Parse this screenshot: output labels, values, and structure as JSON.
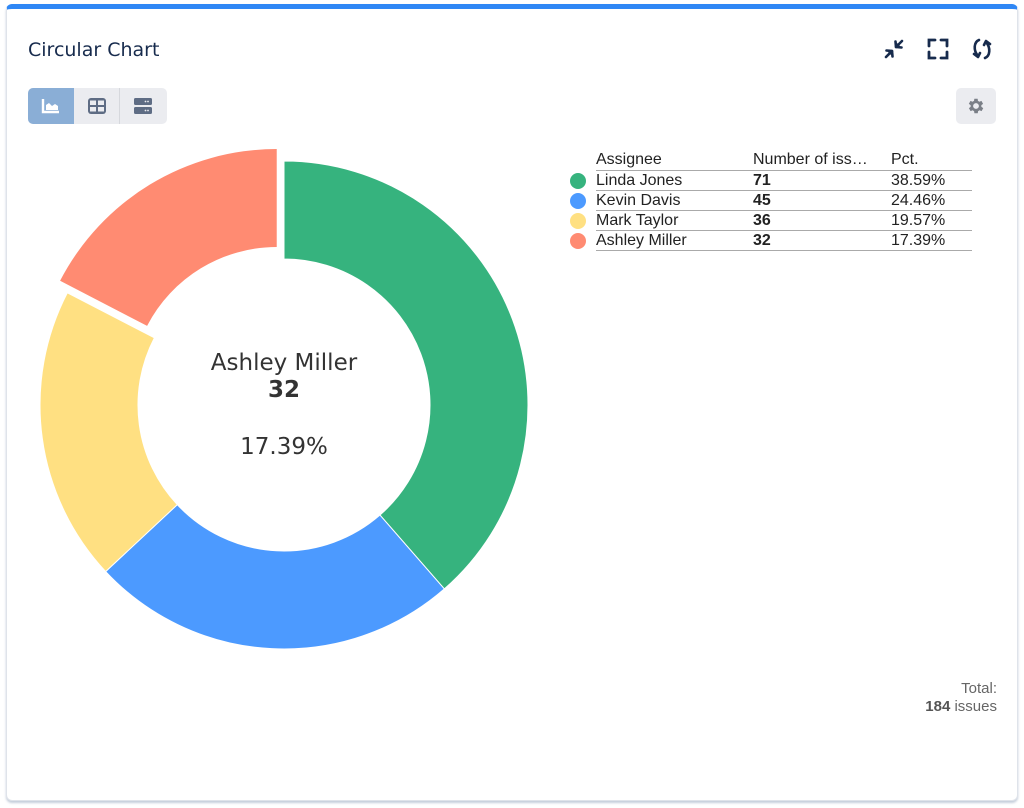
{
  "header": {
    "title": "Circular Chart",
    "icons": [
      "collapse-icon",
      "fullscreen-icon",
      "refresh-icon"
    ]
  },
  "view_toggle": {
    "options": [
      {
        "name": "chart-view",
        "icon": "area-chart-icon",
        "active": true
      },
      {
        "name": "table-view",
        "icon": "grid-icon",
        "active": false
      },
      {
        "name": "list-view",
        "icon": "server-rows-icon",
        "active": false
      }
    ]
  },
  "settings": {
    "icon": "gear-icon"
  },
  "center": {
    "name": "Ashley Miller",
    "value": "32",
    "pct": "17.39%"
  },
  "legend": {
    "headers": [
      "Assignee",
      "Number of iss…",
      "Pct."
    ],
    "rows": [
      {
        "name": "Linda Jones",
        "value": "71",
        "pct": "38.59%",
        "color": "#36b37e"
      },
      {
        "name": "Kevin Davis",
        "value": "45",
        "pct": "24.46%",
        "color": "#4c9aff"
      },
      {
        "name": "Mark Taylor",
        "value": "36",
        "pct": "19.57%",
        "color": "#ffe082"
      },
      {
        "name": "Ashley Miller",
        "value": "32",
        "pct": "17.39%",
        "color": "#ff8b72"
      }
    ]
  },
  "total": {
    "label": "Total:",
    "count": "184",
    "unit": "issues"
  },
  "chart_data": {
    "type": "pie",
    "subtype": "donut",
    "title": "Circular Chart",
    "categories": [
      "Linda Jones",
      "Kevin Davis",
      "Mark Taylor",
      "Ashley Miller"
    ],
    "values": [
      71,
      45,
      36,
      32
    ],
    "percentages": [
      38.59,
      24.46,
      19.57,
      17.39
    ],
    "colors": [
      "#36b37e",
      "#4c9aff",
      "#ffe082",
      "#ff8b72"
    ],
    "highlighted": "Ashley Miller",
    "total": 184,
    "legend_position": "right",
    "legend_columns": [
      "Assignee",
      "Number of issues",
      "Pct."
    ]
  }
}
